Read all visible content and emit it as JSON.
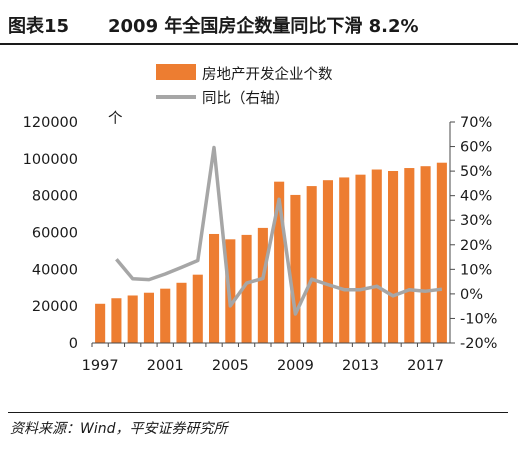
{
  "figure": {
    "label": "图表15",
    "title": "2009 年全国房企数量同比下滑 8.2%",
    "source": "资料来源：Wind，平安证券研究所"
  },
  "chart_data": {
    "type": "bar",
    "categories": [
      "1997",
      "1998",
      "1999",
      "2000",
      "2001",
      "2002",
      "2003",
      "2004",
      "2005",
      "2006",
      "2007",
      "2008",
      "2009",
      "2010",
      "2011",
      "2012",
      "2013",
      "2014",
      "2015",
      "2016",
      "2017",
      "2018"
    ],
    "x_tick_labels": [
      "1997",
      "2001",
      "2005",
      "2009",
      "2013",
      "2017"
    ],
    "series": [
      {
        "name": "房地产开发企业个数",
        "type": "bar",
        "axis": "left",
        "color": "#ED7D31",
        "values": [
          21300,
          24300,
          25800,
          27300,
          29500,
          32700,
          37100,
          59200,
          56300,
          58700,
          62500,
          87600,
          80400,
          85200,
          88400,
          89900,
          91400,
          94200,
          93400,
          95000,
          96000,
          97900
        ]
      },
      {
        "name": "同比（右轴）",
        "type": "line",
        "axis": "right",
        "color": "#A6A6A6",
        "values": [
          null,
          14.1,
          6.2,
          5.8,
          8.1,
          10.8,
          13.6,
          59.6,
          -4.9,
          4.4,
          6.3,
          38.5,
          -8.2,
          6.0,
          3.8,
          1.7,
          1.7,
          3.1,
          -0.8,
          1.7,
          1.1,
          1.9
        ]
      }
    ],
    "y_left": {
      "unit": "个",
      "ylim": [
        0,
        120000
      ],
      "ticks": [
        "0",
        "20000",
        "40000",
        "60000",
        "80000",
        "100000",
        "120000"
      ]
    },
    "y_right": {
      "ylim": [
        -20,
        70
      ],
      "ticks": [
        "-20%",
        "-10%",
        "0%",
        "10%",
        "20%",
        "30%",
        "40%",
        "50%",
        "60%",
        "70%"
      ]
    },
    "legend_position": "top-center",
    "grid": false
  }
}
